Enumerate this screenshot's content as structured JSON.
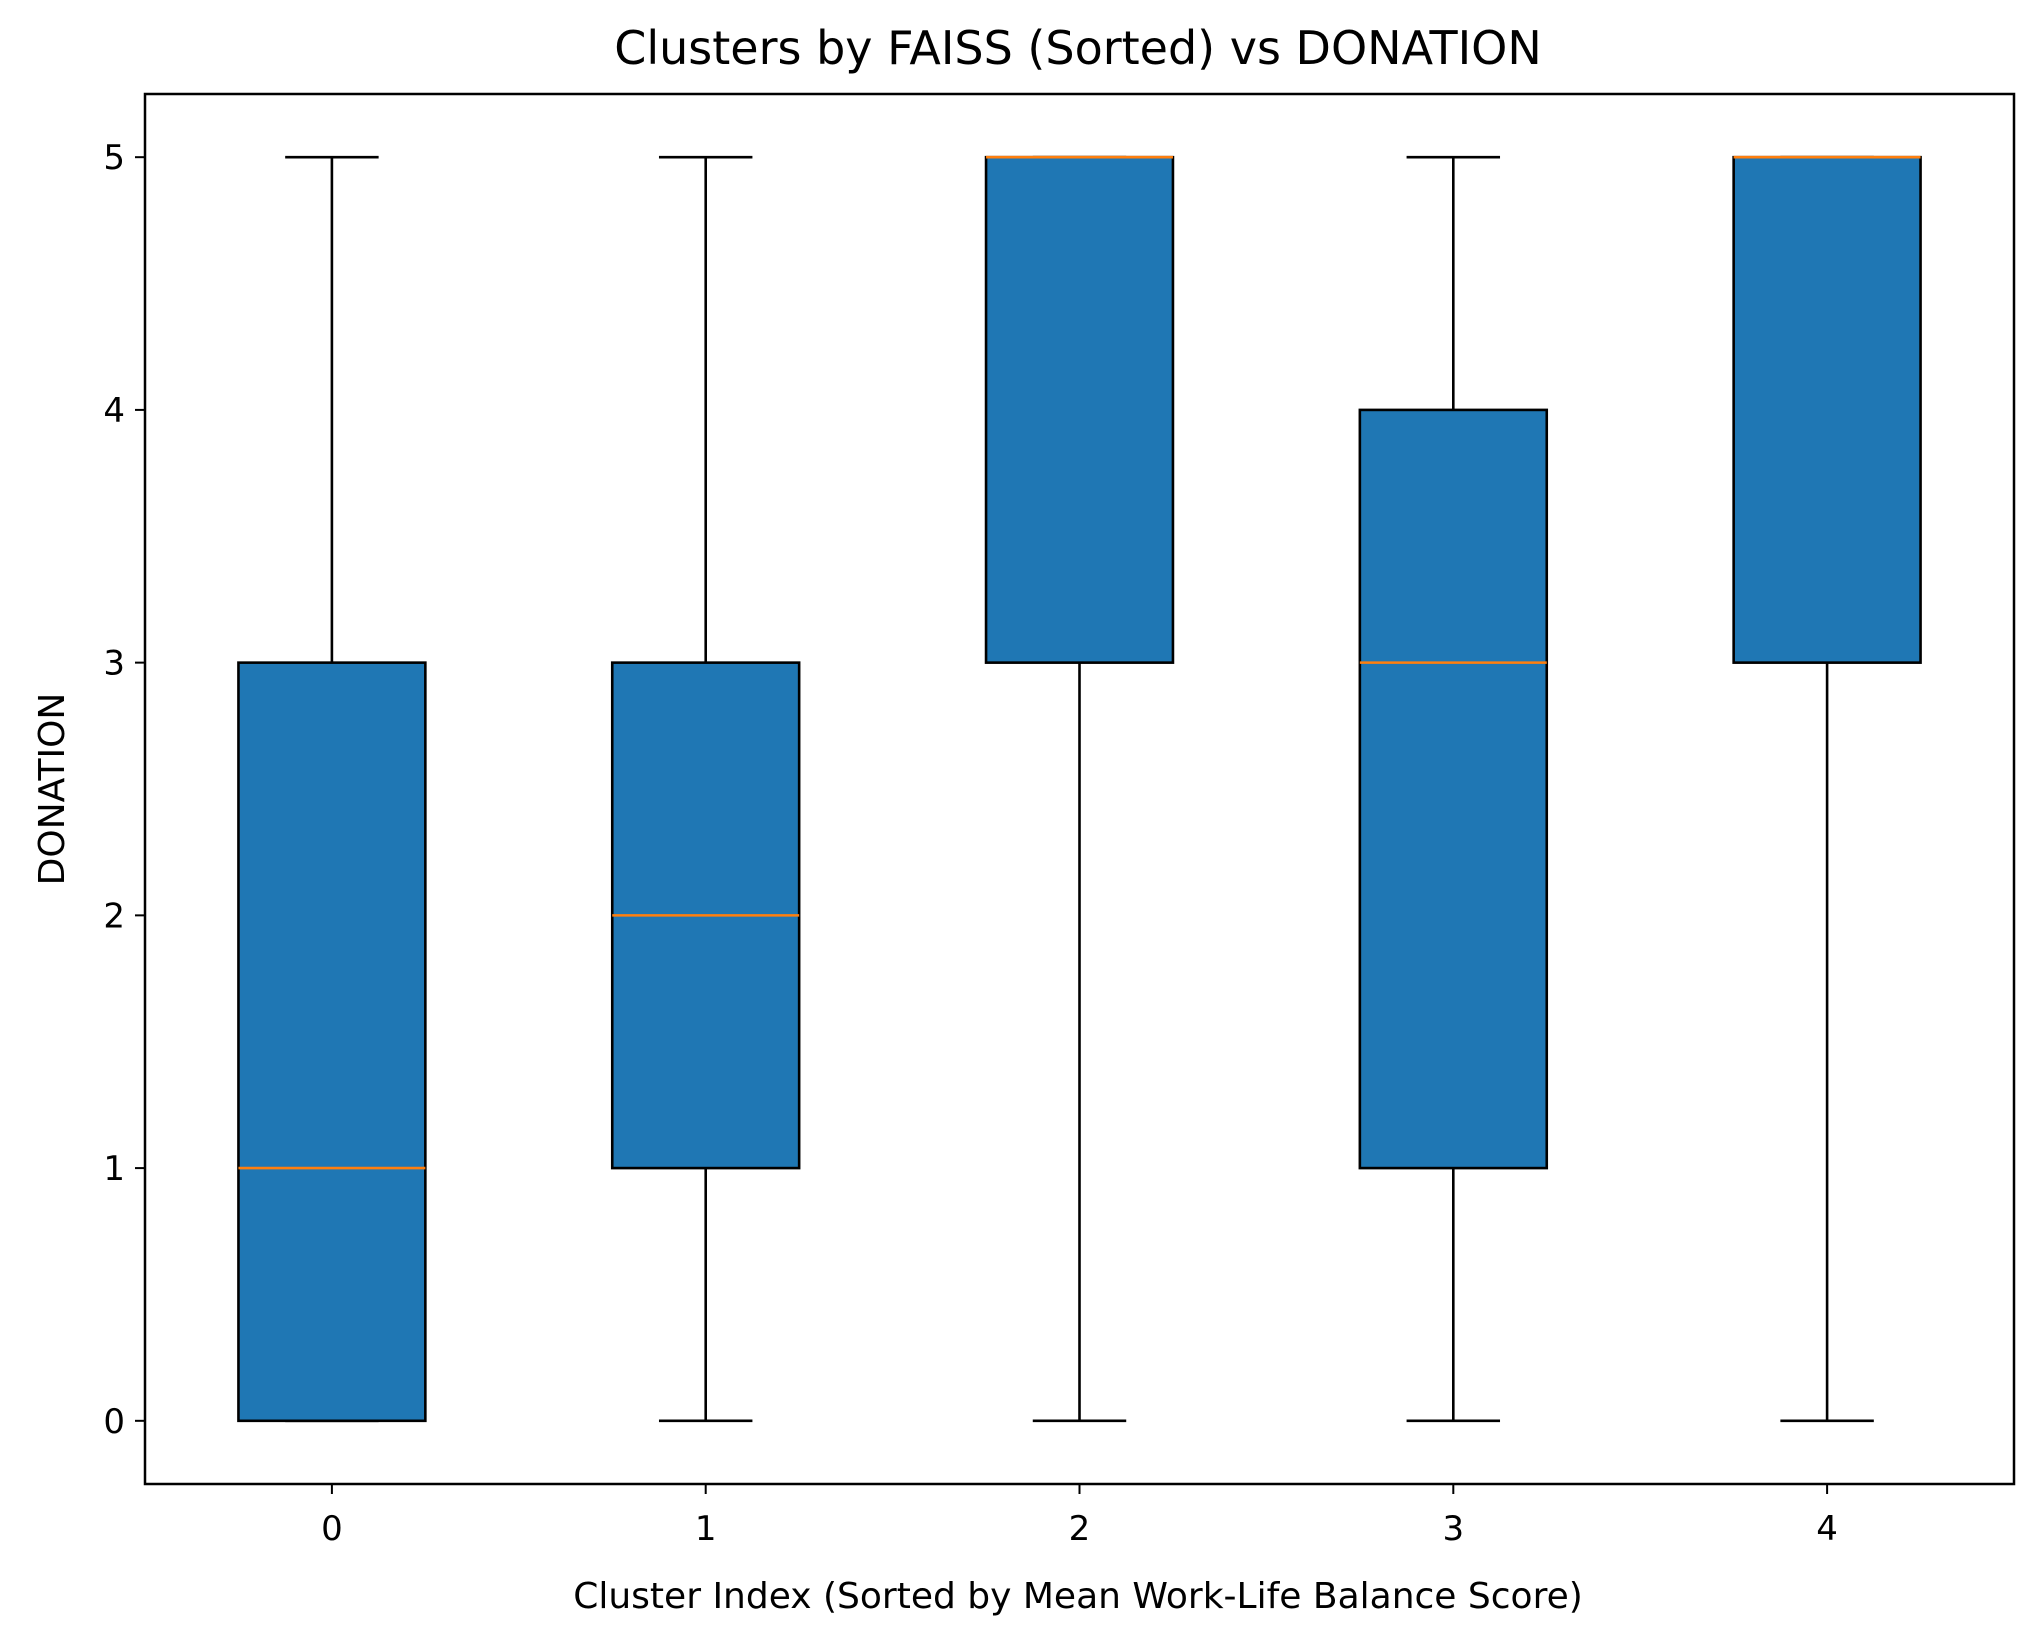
{
  "chart_data": {
    "type": "box",
    "title": "Clusters by FAISS (Sorted) vs DONATION",
    "xlabel": "Cluster Index (Sorted by Mean Work-Life Balance Score)",
    "ylabel": "DONATION",
    "categories": [
      "0",
      "1",
      "2",
      "3",
      "4"
    ],
    "ylim": [
      -0.25,
      5.25
    ],
    "yticks": [
      0,
      1,
      2,
      3,
      4,
      5
    ],
    "boxes": [
      {
        "category": "0",
        "whisker_low": 0,
        "q1": 0,
        "median": 1,
        "q3": 3,
        "whisker_high": 5
      },
      {
        "category": "1",
        "whisker_low": 0,
        "q1": 1,
        "median": 2,
        "q3": 3,
        "whisker_high": 5
      },
      {
        "category": "2",
        "whisker_low": 0,
        "q1": 3,
        "median": 5,
        "q3": 5,
        "whisker_high": 5
      },
      {
        "category": "3",
        "whisker_low": 0,
        "q1": 1,
        "median": 3,
        "q3": 4,
        "whisker_high": 5
      },
      {
        "category": "4",
        "whisker_low": 0,
        "q1": 3,
        "median": 5,
        "q3": 5,
        "whisker_high": 5
      }
    ],
    "colors": {
      "box_fill": "#1f77b4",
      "median": "#ff7f0e",
      "lines": "#000000"
    },
    "grid": false,
    "legend": "none"
  }
}
